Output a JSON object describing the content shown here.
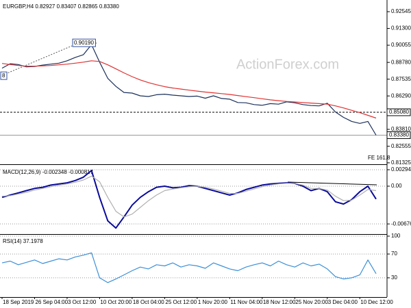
{
  "chart_data": [
    {
      "type": "line",
      "title": "EURGBP,H4 0.82927 0.83407 0.82865 0.83380",
      "series": [
        {
          "color": "#1a2f5a",
          "values": [
            0.8835,
            0.8868,
            0.8862,
            0.8845,
            0.8848,
            0.8858,
            0.8865,
            0.8872,
            0.889,
            0.8915,
            0.8935,
            0.901,
            0.888,
            0.876,
            0.87,
            0.8655,
            0.865,
            0.863,
            0.8625,
            0.8638,
            0.8642,
            0.8635,
            0.863,
            0.8625,
            0.8628,
            0.8612,
            0.863,
            0.861,
            0.8605,
            0.858,
            0.8578,
            0.8565,
            0.856,
            0.8572,
            0.8568,
            0.8585,
            0.8578,
            0.8565,
            0.8558,
            0.8555,
            0.8575,
            0.851,
            0.847,
            0.844,
            0.8425,
            0.844,
            0.8338
          ]
        },
        {
          "color": "#e03030",
          "values": [
            0.887,
            0.8862,
            0.8855,
            0.885,
            0.885,
            0.8852,
            0.8855,
            0.886,
            0.8865,
            0.8872,
            0.888,
            0.889,
            0.8885,
            0.886,
            0.883,
            0.88,
            0.8772,
            0.8748,
            0.8728,
            0.8712,
            0.8698,
            0.8688,
            0.868,
            0.8672,
            0.8665,
            0.8658,
            0.8652,
            0.8646,
            0.864,
            0.8632,
            0.8624,
            0.8616,
            0.8608,
            0.86,
            0.8594,
            0.8588,
            0.8584,
            0.858,
            0.8576,
            0.8572,
            0.8568,
            0.8555,
            0.854,
            0.8522,
            0.8505,
            0.8485,
            0.8465
          ]
        }
      ],
      "ylim": [
        0.8132,
        0.9331
      ],
      "yticks": [
        0.92545,
        {
          "value": 0.913,
          "label": "0.91300"
        },
        0.90055,
        {
          "value": 0.8878,
          "label": "0.88780"
        },
        0.87535,
        {
          "value": 0.8629,
          "label": "0.86290"
        },
        {
          "value": 0.8381,
          "label": "0.83810"
        },
        0.82555,
        0.81325
      ],
      "hlines": [
        {
          "value": 0.8508,
          "label": "0.85080"
        },
        {
          "value": 0.8338,
          "label": "0.83380"
        }
      ],
      "annotations": [
        "0.90190",
        "FE 161.8",
        "ActionForex.com",
        "8"
      ],
      "grid": false
    },
    {
      "type": "line",
      "title": "MACD(12,26,9) -0.002348 -0.000817",
      "series": [
        {
          "color": "#0a0a9a",
          "values": [
            -0.002,
            -0.0016,
            -0.0012,
            -0.0008,
            -0.0004,
            -0.0002,
            0.0002,
            0.0004,
            0.0006,
            0.001,
            0.0016,
            0.0028,
            -0.002,
            -0.0062,
            -0.0075,
            -0.0055,
            -0.0034,
            -0.002,
            -0.001,
            -0.0002,
            0.0,
            -0.0003,
            -0.0002,
            0.0001,
            0.0,
            -0.0004,
            -0.0008,
            -0.0012,
            -0.0016,
            -0.0012,
            -0.0006,
            -0.0002,
            0.0002,
            0.0004,
            0.0005,
            0.0006,
            0.0005,
            0.0,
            -0.0008,
            -0.0004,
            -0.001,
            -0.0028,
            -0.0032,
            -0.0024,
            -0.001,
            0.0,
            -0.0023
          ]
        },
        {
          "color": "#b0b0b0",
          "values": [
            -0.0018,
            -0.0017,
            -0.0014,
            -0.0011,
            -0.0007,
            -0.0004,
            -0.0001,
            0.0002,
            0.0004,
            0.0007,
            0.0011,
            0.0018,
            0.0008,
            -0.002,
            -0.0045,
            -0.0055,
            -0.005,
            -0.0038,
            -0.0026,
            -0.0016,
            -0.0008,
            -0.0005,
            -0.0003,
            -0.0001,
            0.0,
            -0.0002,
            -0.0005,
            -0.0009,
            -0.0013,
            -0.0013,
            -0.0009,
            -0.0005,
            -0.0001,
            0.0002,
            0.0004,
            0.0005,
            0.0005,
            0.0002,
            -0.0004,
            -0.0004,
            -0.0007,
            -0.0018,
            -0.0026,
            -0.0025,
            -0.0016,
            -0.0006,
            -0.0008
          ]
        }
      ],
      "ylim": [
        -0.00809,
        0.00343
      ],
      "yticks": [
        0.002942,
        {
          "value": 0,
          "label": "0.00"
        },
        -0.006761
      ],
      "grid": true
    },
    {
      "type": "line",
      "title": "RSI(14) 37.1978",
      "categories": [
        "18 Sep 2019",
        null,
        null,
        null,
        "26 Sep 04:00",
        null,
        null,
        null,
        "3 Oct 12:00",
        null,
        null,
        null,
        "10 Oct 20:00",
        null,
        null,
        null,
        "18 Oct 04:00",
        null,
        null,
        null,
        "25 Oct 12:00",
        null,
        null,
        null,
        "1 Nov 20:00",
        null,
        null,
        null,
        "11 Nov 04:00",
        null,
        null,
        null,
        "18 Nov 12:00",
        null,
        null,
        null,
        "25 Nov 20:00",
        null,
        null,
        null,
        "3 Dec 04:00",
        null,
        null,
        null,
        "10 Dec 12:00",
        null,
        null
      ],
      "series": [
        {
          "color": "#3a8fd8",
          "values": [
            55,
            58,
            52,
            56,
            60,
            54,
            58,
            62,
            60,
            65,
            68,
            72,
            30,
            22,
            28,
            35,
            42,
            48,
            45,
            52,
            50,
            55,
            48,
            52,
            50,
            46,
            55,
            50,
            45,
            42,
            48,
            52,
            55,
            50,
            58,
            52,
            48,
            55,
            50,
            53,
            45,
            32,
            28,
            30,
            35,
            60,
            37
          ]
        }
      ],
      "ylim": [
        0,
        100
      ],
      "yticks": [
        100,
        70,
        30
      ],
      "grid": true
    }
  ]
}
